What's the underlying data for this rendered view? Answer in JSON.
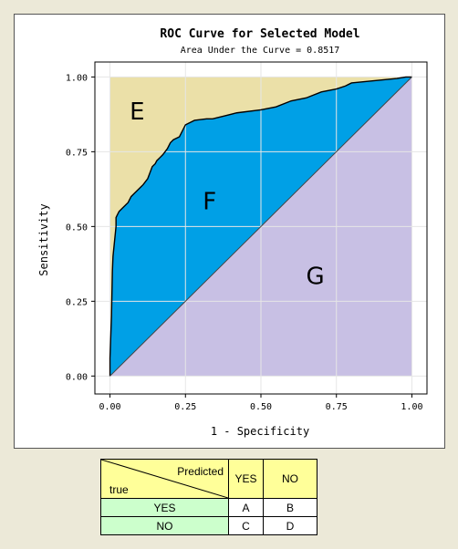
{
  "chart_data": {
    "type": "area",
    "title": "ROC Curve for Selected Model",
    "subtitle": "Area Under the Curve = 0.8517",
    "xlabel": "1 - Specificity",
    "ylabel": "Sensitivity",
    "xlim": [
      -0.05,
      1.05
    ],
    "ylim": [
      -0.06,
      1.05
    ],
    "xticks": [
      "0.00",
      "0.25",
      "0.50",
      "0.75",
      "1.00"
    ],
    "yticks": [
      "0.00",
      "0.25",
      "0.50",
      "0.75",
      "1.00"
    ],
    "grid": true,
    "region_labels": [
      "E",
      "F",
      "G"
    ],
    "colors": {
      "E": "#ebe0a8",
      "F": "#00a0e6",
      "G": "#c8c0e4",
      "grid": "#e6e6e6"
    },
    "roc_x": [
      0.0,
      0.0,
      0.005,
      0.008,
      0.01,
      0.015,
      0.02,
      0.02,
      0.025,
      0.03,
      0.04,
      0.05,
      0.06,
      0.07,
      0.08,
      0.09,
      0.1,
      0.11,
      0.125,
      0.14,
      0.15,
      0.155,
      0.165,
      0.175,
      0.19,
      0.2,
      0.21,
      0.23,
      0.24,
      0.25,
      0.28,
      0.32,
      0.34,
      0.38,
      0.42,
      0.5,
      0.55,
      0.6,
      0.65,
      0.7,
      0.75,
      0.78,
      0.8,
      0.85,
      0.9,
      0.95,
      0.98,
      1.0
    ],
    "roc_y": [
      0.0,
      0.06,
      0.2,
      0.35,
      0.4,
      0.45,
      0.5,
      0.53,
      0.54,
      0.55,
      0.56,
      0.57,
      0.58,
      0.6,
      0.61,
      0.62,
      0.63,
      0.64,
      0.66,
      0.7,
      0.71,
      0.72,
      0.73,
      0.74,
      0.76,
      0.78,
      0.79,
      0.8,
      0.82,
      0.84,
      0.855,
      0.86,
      0.86,
      0.87,
      0.88,
      0.89,
      0.9,
      0.92,
      0.93,
      0.95,
      0.96,
      0.97,
      0.98,
      0.985,
      0.99,
      0.995,
      1.0,
      1.0
    ]
  },
  "confusion_table": {
    "header_predicted": "Predicted",
    "header_true": "true",
    "col_labels": [
      "YES",
      "NO"
    ],
    "rows": [
      {
        "label": "YES",
        "cells": [
          "A",
          "B"
        ]
      },
      {
        "label": "NO",
        "cells": [
          "C",
          "D"
        ]
      }
    ]
  }
}
